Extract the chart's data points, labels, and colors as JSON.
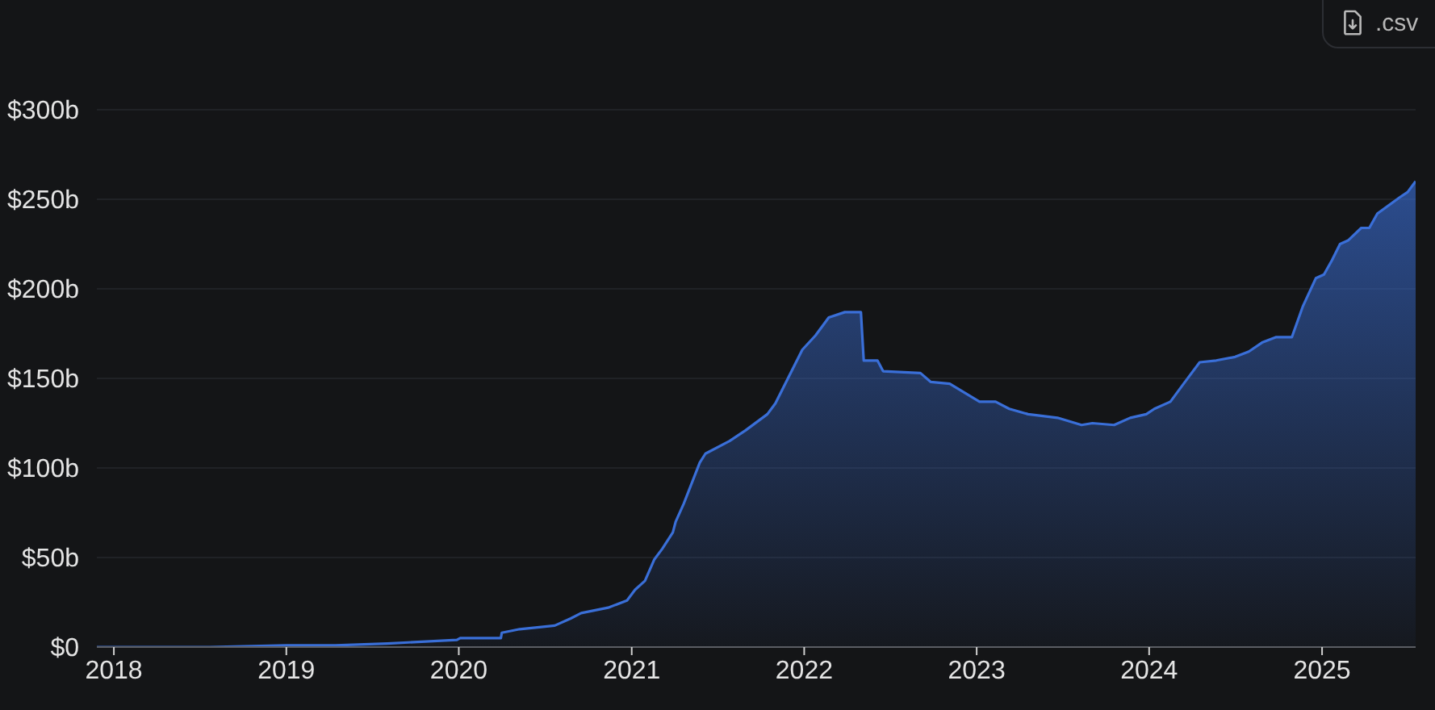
{
  "chart_data": {
    "type": "area",
    "x": [
      "2017-11-26",
      "2018-07-23",
      "2019-01-01",
      "2019-04-15",
      "2019-08-03",
      "2019-12-28",
      "2020-01-04",
      "2020-03-30",
      "2020-04-01",
      "2020-05-09",
      "2020-07-22",
      "2020-08-25",
      "2020-09-16",
      "2020-11-12",
      "2020-12-22",
      "2021-01-08",
      "2021-01-29",
      "2021-02-18",
      "2021-03-07",
      "2021-03-29",
      "2021-04-04",
      "2021-04-21",
      "2021-05-25",
      "2021-06-06",
      "2021-07-27",
      "2021-08-30",
      "2021-10-15",
      "2021-11-01",
      "2021-12-28",
      "2022-01-25",
      "2022-02-22",
      "2022-03-28",
      "2022-05-01",
      "2022-05-07",
      "2022-06-05",
      "2022-06-17",
      "2022-09-04",
      "2022-09-26",
      "2022-11-05",
      "2023-01-07",
      "2023-02-10",
      "2023-03-11",
      "2023-04-20",
      "2023-06-21",
      "2023-08-11",
      "2023-09-03",
      "2023-10-19",
      "2023-11-22",
      "2023-12-26",
      "2024-01-12",
      "2024-02-15",
      "2024-03-14",
      "2024-04-17",
      "2024-05-22",
      "2024-07-01",
      "2024-07-30",
      "2024-08-27",
      "2024-09-25",
      "2024-10-29",
      "2024-11-21",
      "2024-12-19",
      "2025-01-05",
      "2025-01-22",
      "2025-02-08",
      "2025-02-25",
      "2025-03-25",
      "2025-04-11",
      "2025-04-28",
      "2025-06-14",
      "2025-07-01",
      "2025-07-18"
    ],
    "values": [
      0,
      0,
      1,
      1,
      2,
      4,
      5,
      5,
      8,
      10,
      12,
      16,
      19,
      22,
      26,
      32,
      37,
      49,
      55,
      64,
      70,
      80,
      103,
      108,
      115,
      121,
      130,
      136,
      166,
      174,
      184,
      187,
      187,
      160,
      160,
      154,
      153,
      148,
      147,
      137,
      137,
      133,
      130,
      128,
      124,
      125,
      124,
      128,
      130,
      133,
      137,
      147,
      159,
      160,
      162,
      165,
      170,
      173,
      173,
      190,
      206,
      208,
      216,
      225,
      227,
      234,
      234,
      242,
      251,
      254,
      260
    ],
    "color": "#3a6fd8",
    "xlim": [
      "2017-11-26",
      "2025-07-18"
    ],
    "xticks": [
      "2018",
      "2019",
      "2020",
      "2021",
      "2022",
      "2023",
      "2024",
      "2025"
    ],
    "ylim": [
      0,
      300
    ],
    "yticks": [
      {
        "value": 0,
        "label": "$0"
      },
      {
        "value": 50,
        "label": "$50b"
      },
      {
        "value": 100,
        "label": "$100b"
      },
      {
        "value": 150,
        "label": "$150b"
      },
      {
        "value": 200,
        "label": "$200b"
      },
      {
        "value": 250,
        "label": "$250b"
      },
      {
        "value": 300,
        "label": "$300b"
      }
    ],
    "grid": "y",
    "annotations": [
      ".csv"
    ]
  }
}
